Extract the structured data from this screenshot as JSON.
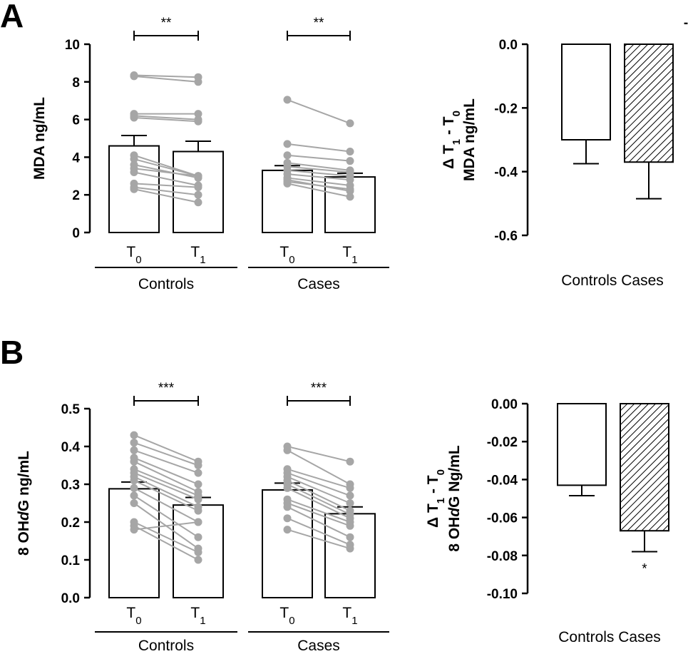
{
  "colors": {
    "ink": "#000000",
    "pair_point": "#a6a6a6",
    "pair_line": "#a6a6a6",
    "bar_fill": "#ffffff"
  },
  "chart_data": [
    {
      "panel": "A",
      "type": "bar",
      "subtype": "before-after paired",
      "ylabel": "MDA ng/mL",
      "ylim": [
        0,
        10
      ],
      "yticks": [
        "0",
        "2",
        "4",
        "6",
        "8",
        "10"
      ],
      "categories": [
        "T0",
        "T1",
        "T0",
        "T1"
      ],
      "groups": [
        "Controls",
        "Cases"
      ],
      "series": [
        {
          "name": "Controls",
          "T0": {
            "mean": 4.6,
            "sem": 0.55
          },
          "T1": {
            "mean": 4.3,
            "sem": 0.55
          },
          "pairs": [
            [
              8.35,
              8.25
            ],
            [
              8.3,
              8.0
            ],
            [
              6.3,
              6.3
            ],
            [
              6.2,
              6.0
            ],
            [
              6.1,
              5.9
            ],
            [
              4.1,
              3.0
            ],
            [
              3.9,
              3.0
            ],
            [
              3.6,
              2.9
            ],
            [
              3.4,
              3.0
            ],
            [
              3.2,
              2.5
            ],
            [
              2.6,
              2.4
            ],
            [
              2.4,
              2.0
            ],
            [
              2.3,
              1.6
            ]
          ]
        },
        {
          "name": "Cases",
          "T0": {
            "mean": 3.3,
            "sem": 0.25
          },
          "T1": {
            "mean": 2.95,
            "sem": 0.2
          },
          "pairs": [
            [
              7.05,
              5.8
            ],
            [
              4.7,
              4.3
            ],
            [
              4.1,
              3.8
            ],
            [
              3.7,
              3.3
            ],
            [
              3.5,
              3.2
            ],
            [
              3.3,
              3.0
            ],
            [
              3.1,
              2.8
            ],
            [
              2.9,
              2.5
            ],
            [
              2.7,
              2.3
            ],
            [
              2.6,
              1.9
            ],
            [
              2.8,
              2.2
            ]
          ]
        }
      ],
      "significance": [
        "**",
        "**"
      ]
    },
    {
      "panel": "A-delta",
      "type": "bar",
      "ylabel_line1": "Δ T1 - T0",
      "ylabel_line2": "MDA ng/mL",
      "ylim": [
        -0.6,
        0.0
      ],
      "yticks": [
        "0.0",
        "-0.2",
        "-0.4",
        "-0.6"
      ],
      "categories": [
        "Controls",
        "Cases"
      ],
      "values": [
        -0.3,
        -0.37
      ],
      "errors": [
        0.075,
        0.115
      ],
      "hatched": [
        false,
        true
      ],
      "annotations": [
        "",
        ""
      ],
      "category_label": "Controls Cases",
      "corner_mark": "-"
    },
    {
      "panel": "B",
      "type": "bar",
      "subtype": "before-after paired",
      "ylabel": "8 OHdG ng/mL",
      "ylim": [
        0,
        0.5
      ],
      "yticks": [
        "0.0",
        "0.1",
        "0.2",
        "0.3",
        "0.4",
        "0.5"
      ],
      "categories": [
        "T0",
        "T1",
        "T0",
        "T1"
      ],
      "groups": [
        "Controls",
        "Cases"
      ],
      "series": [
        {
          "name": "Controls",
          "T0": {
            "mean": 0.288,
            "sem": 0.018
          },
          "T1": {
            "mean": 0.245,
            "sem": 0.02
          },
          "pairs": [
            [
              0.43,
              0.36
            ],
            [
              0.41,
              0.35
            ],
            [
              0.39,
              0.33
            ],
            [
              0.37,
              0.3
            ],
            [
              0.36,
              0.28
            ],
            [
              0.34,
              0.27
            ],
            [
              0.33,
              0.26
            ],
            [
              0.32,
              0.24
            ],
            [
              0.31,
              0.23
            ],
            [
              0.29,
              0.2
            ],
            [
              0.27,
              0.16
            ],
            [
              0.25,
              0.13
            ],
            [
              0.2,
              0.12
            ],
            [
              0.19,
              0.1
            ],
            [
              0.18,
              0.2
            ]
          ]
        },
        {
          "name": "Cases",
          "T0": {
            "mean": 0.285,
            "sem": 0.018
          },
          "T1": {
            "mean": 0.222,
            "sem": 0.018
          },
          "pairs": [
            [
              0.4,
              0.36
            ],
            [
              0.39,
              0.3
            ],
            [
              0.34,
              0.29
            ],
            [
              0.33,
              0.27
            ],
            [
              0.32,
              0.25
            ],
            [
              0.31,
              0.23
            ],
            [
              0.3,
              0.22
            ],
            [
              0.29,
              0.21
            ],
            [
              0.26,
              0.2
            ],
            [
              0.25,
              0.19
            ],
            [
              0.24,
              0.16
            ],
            [
              0.21,
              0.14
            ],
            [
              0.18,
              0.13
            ]
          ]
        }
      ],
      "significance": [
        "***",
        "***"
      ]
    },
    {
      "panel": "B-delta",
      "type": "bar",
      "ylabel_line1": "Δ T1 - T0",
      "ylabel_line2": "8 OHdG Ng/mL",
      "ylim": [
        -0.1,
        0.0
      ],
      "yticks": [
        "0.00",
        "-0.02",
        "-0.04",
        "-0.06",
        "-0.08",
        "-0.10"
      ],
      "categories": [
        "Controls",
        "Cases"
      ],
      "values": [
        -0.043,
        -0.067
      ],
      "errors": [
        0.0055,
        0.011
      ],
      "hatched": [
        false,
        true
      ],
      "annotations": [
        "",
        "*"
      ],
      "category_label": "Controls Cases",
      "corner_mark": ""
    }
  ]
}
